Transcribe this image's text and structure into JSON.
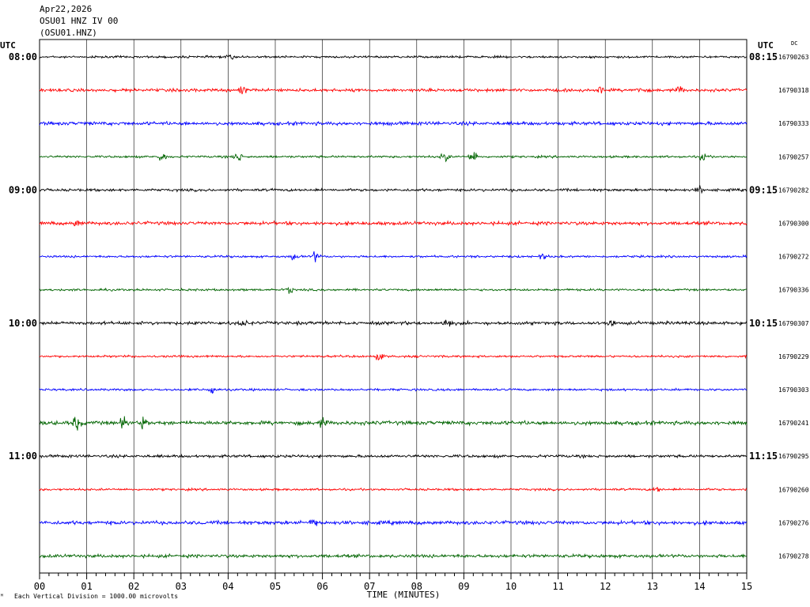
{
  "header": {
    "date": "Apr22,2026",
    "station": "OSU01 HNZ IV 00",
    "channel": "(OSU01.HNZ)"
  },
  "footnote": {
    "mark": "ᴹ",
    "text": "Each Vertical Division = 1000.00 microvolts"
  },
  "colors": {
    "trace_cycle": [
      "#000000",
      "#ff0000",
      "#0000ff",
      "#006400"
    ],
    "grid": "#000000"
  },
  "chart_data": {
    "type": "line",
    "title": "",
    "left_axis_label": "UTC",
    "right_axis_label": "UTC",
    "right_value_header": "DC",
    "xlabel": "TIME (MINUTES)",
    "xlim": [
      0,
      15
    ],
    "x_ticks": [
      "00",
      "01",
      "02",
      "03",
      "04",
      "05",
      "06",
      "07",
      "08",
      "09",
      "10",
      "11",
      "12",
      "13",
      "14",
      "15"
    ],
    "rows": [
      {
        "left": "08:00",
        "right": "08:15",
        "dc": "16790263",
        "color": "#000000",
        "amp": 1.0,
        "events": [
          [
            4.05,
            2
          ]
        ]
      },
      {
        "left": "",
        "right": "",
        "dc": "16790318",
        "color": "#ff0000",
        "amp": 1.4,
        "events": [
          [
            4.3,
            4
          ],
          [
            11.9,
            3
          ],
          [
            12.7,
            3
          ],
          [
            13.6,
            3
          ]
        ]
      },
      {
        "left": "",
        "right": "",
        "dc": "16790333",
        "color": "#0000ff",
        "amp": 1.6,
        "events": []
      },
      {
        "left": "",
        "right": "",
        "dc": "16790257",
        "color": "#006400",
        "amp": 1.0,
        "events": [
          [
            2.6,
            5
          ],
          [
            4.2,
            6
          ],
          [
            8.6,
            6
          ],
          [
            9.2,
            7
          ],
          [
            14.1,
            5
          ]
        ]
      },
      {
        "left": "09:00",
        "right": "09:15",
        "dc": "16790282",
        "color": "#000000",
        "amp": 1.2,
        "events": [
          [
            14.0,
            3
          ]
        ]
      },
      {
        "left": "",
        "right": "",
        "dc": "16790300",
        "color": "#ff0000",
        "amp": 1.6,
        "events": [
          [
            0.8,
            3
          ]
        ]
      },
      {
        "left": "",
        "right": "",
        "dc": "16790272",
        "color": "#0000ff",
        "amp": 1.0,
        "events": [
          [
            5.4,
            3
          ],
          [
            5.85,
            5
          ],
          [
            10.7,
            3
          ]
        ]
      },
      {
        "left": "",
        "right": "",
        "dc": "16790336",
        "color": "#006400",
        "amp": 1.0,
        "events": [
          [
            5.3,
            3
          ]
        ]
      },
      {
        "left": "10:00",
        "right": "10:15",
        "dc": "16790307",
        "color": "#000000",
        "amp": 1.5,
        "events": [
          [
            3.4,
            3
          ],
          [
            4.3,
            3
          ],
          [
            8.65,
            5
          ],
          [
            12.1,
            3
          ]
        ]
      },
      {
        "left": "",
        "right": "",
        "dc": "16790229",
        "color": "#ff0000",
        "amp": 1.0,
        "events": [
          [
            7.2,
            4
          ]
        ]
      },
      {
        "left": "",
        "right": "",
        "dc": "16790303",
        "color": "#0000ff",
        "amp": 1.0,
        "events": [
          [
            3.65,
            5
          ]
        ]
      },
      {
        "left": "",
        "right": "",
        "dc": "16790241",
        "color": "#006400",
        "amp": 1.8,
        "events": [
          [
            0.8,
            7
          ],
          [
            1.8,
            6
          ],
          [
            2.2,
            5
          ],
          [
            6.0,
            4
          ]
        ]
      },
      {
        "left": "11:00",
        "right": "11:15",
        "dc": "16790295",
        "color": "#000000",
        "amp": 1.3,
        "events": []
      },
      {
        "left": "",
        "right": "",
        "dc": "16790260",
        "color": "#ff0000",
        "amp": 1.0,
        "events": [
          [
            13.1,
            3
          ]
        ]
      },
      {
        "left": "",
        "right": "",
        "dc": "16790276",
        "color": "#0000ff",
        "amp": 1.7,
        "events": [
          [
            5.8,
            4
          ]
        ]
      },
      {
        "left": "",
        "right": "",
        "dc": "16790278",
        "color": "#006400",
        "amp": 1.5,
        "events": []
      }
    ]
  }
}
